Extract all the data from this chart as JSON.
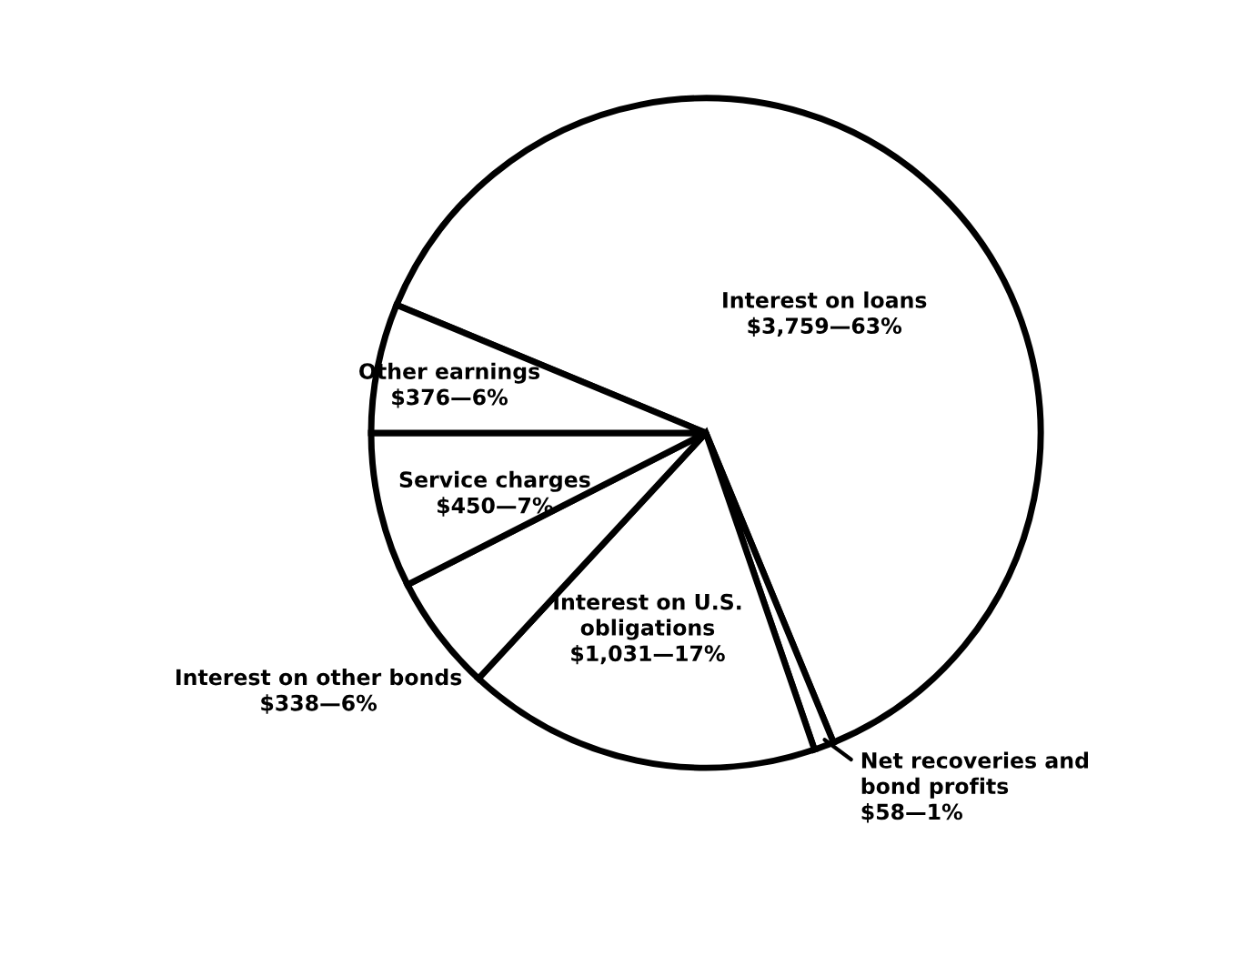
{
  "chart_data": {
    "type": "pie",
    "categories": [
      "Interest on loans",
      "Net recoveries and\nbond profits",
      "Interest on U.S.\nobligations",
      "Interest on other bonds",
      "Service charges",
      "Other earnings"
    ],
    "values": [
      3759,
      58,
      1031,
      338,
      450,
      376
    ],
    "value_labels": [
      "$3,759—63%",
      "$58—1%",
      "$1,031—17%",
      "$338—6%",
      "$450—7%",
      "$376—6%"
    ],
    "colors": [
      "#ffffff",
      "#ffffff",
      "#ffffff",
      "#ffffff",
      "#ffffff",
      "#ffffff"
    ],
    "legend": false
  }
}
